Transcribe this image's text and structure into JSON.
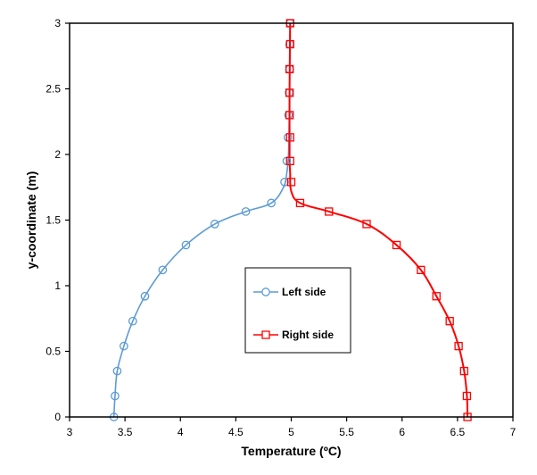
{
  "chart_data": {
    "type": "line",
    "title": "",
    "xlabel": "Temperature (ºC)",
    "ylabel": "y-coordinate (m)",
    "xlim": [
      3,
      7
    ],
    "ylim": [
      0,
      3
    ],
    "xticks": [
      "3",
      "3.5",
      "4",
      "4.5",
      "5",
      "5.5",
      "6",
      "6.5",
      "7"
    ],
    "yticks": [
      "0",
      "0.5",
      "1",
      "1.5",
      "2",
      "2.5",
      "3"
    ],
    "grid": false,
    "legend_placement": "center",
    "series": [
      {
        "name": "Left side",
        "color": "#5b9bd5",
        "marker": "circle",
        "curve": [
          [
            3.4,
            0
          ],
          [
            3.41,
            0.16
          ],
          [
            3.43,
            0.35
          ],
          [
            3.49,
            0.54
          ],
          [
            3.57,
            0.73
          ],
          [
            3.68,
            0.92
          ],
          [
            3.84,
            1.12
          ],
          [
            4.05,
            1.31
          ],
          [
            4.31,
            1.47
          ],
          [
            4.59,
            1.565
          ],
          [
            4.82,
            1.63
          ],
          [
            4.93,
            1.75
          ],
          [
            4.96,
            1.86
          ],
          [
            4.975,
            2.0
          ],
          [
            4.98,
            2.2
          ],
          [
            4.985,
            2.5
          ],
          [
            4.99,
            3.0
          ]
        ],
        "x": [
          3.4,
          3.41,
          3.43,
          3.49,
          3.57,
          3.68,
          3.84,
          4.05,
          4.31,
          4.59,
          4.82,
          4.94,
          4.96,
          4.97,
          4.975,
          4.98,
          4.985,
          4.985,
          4.99
        ],
        "y": [
          0,
          0.16,
          0.35,
          0.54,
          0.73,
          0.92,
          1.12,
          1.31,
          1.47,
          1.565,
          1.63,
          1.79,
          1.95,
          2.13,
          2.3,
          2.47,
          2.65,
          2.84,
          3.0
        ]
      },
      {
        "name": "Right side",
        "color": "#ff0000",
        "marker": "square",
        "curve": [
          [
            6.59,
            0
          ],
          [
            6.585,
            0.16
          ],
          [
            6.56,
            0.35
          ],
          [
            6.51,
            0.54
          ],
          [
            6.43,
            0.73
          ],
          [
            6.31,
            0.92
          ],
          [
            6.17,
            1.12
          ],
          [
            5.95,
            1.31
          ],
          [
            5.68,
            1.47
          ],
          [
            5.34,
            1.565
          ],
          [
            5.08,
            1.63
          ],
          [
            5.0,
            1.72
          ],
          [
            4.99,
            1.86
          ],
          [
            4.985,
            2.0
          ],
          [
            4.985,
            2.5
          ],
          [
            4.99,
            3.0
          ]
        ],
        "x": [
          6.59,
          6.585,
          6.56,
          6.51,
          6.43,
          6.31,
          6.17,
          5.95,
          5.68,
          5.34,
          5.08,
          5.0,
          4.99,
          4.99,
          4.985,
          4.985,
          4.985,
          4.99,
          4.99
        ],
        "y": [
          0,
          0.16,
          0.35,
          0.54,
          0.73,
          0.92,
          1.12,
          1.31,
          1.47,
          1.565,
          1.63,
          1.79,
          1.95,
          2.13,
          2.3,
          2.47,
          2.65,
          2.84,
          3.0
        ]
      }
    ]
  }
}
